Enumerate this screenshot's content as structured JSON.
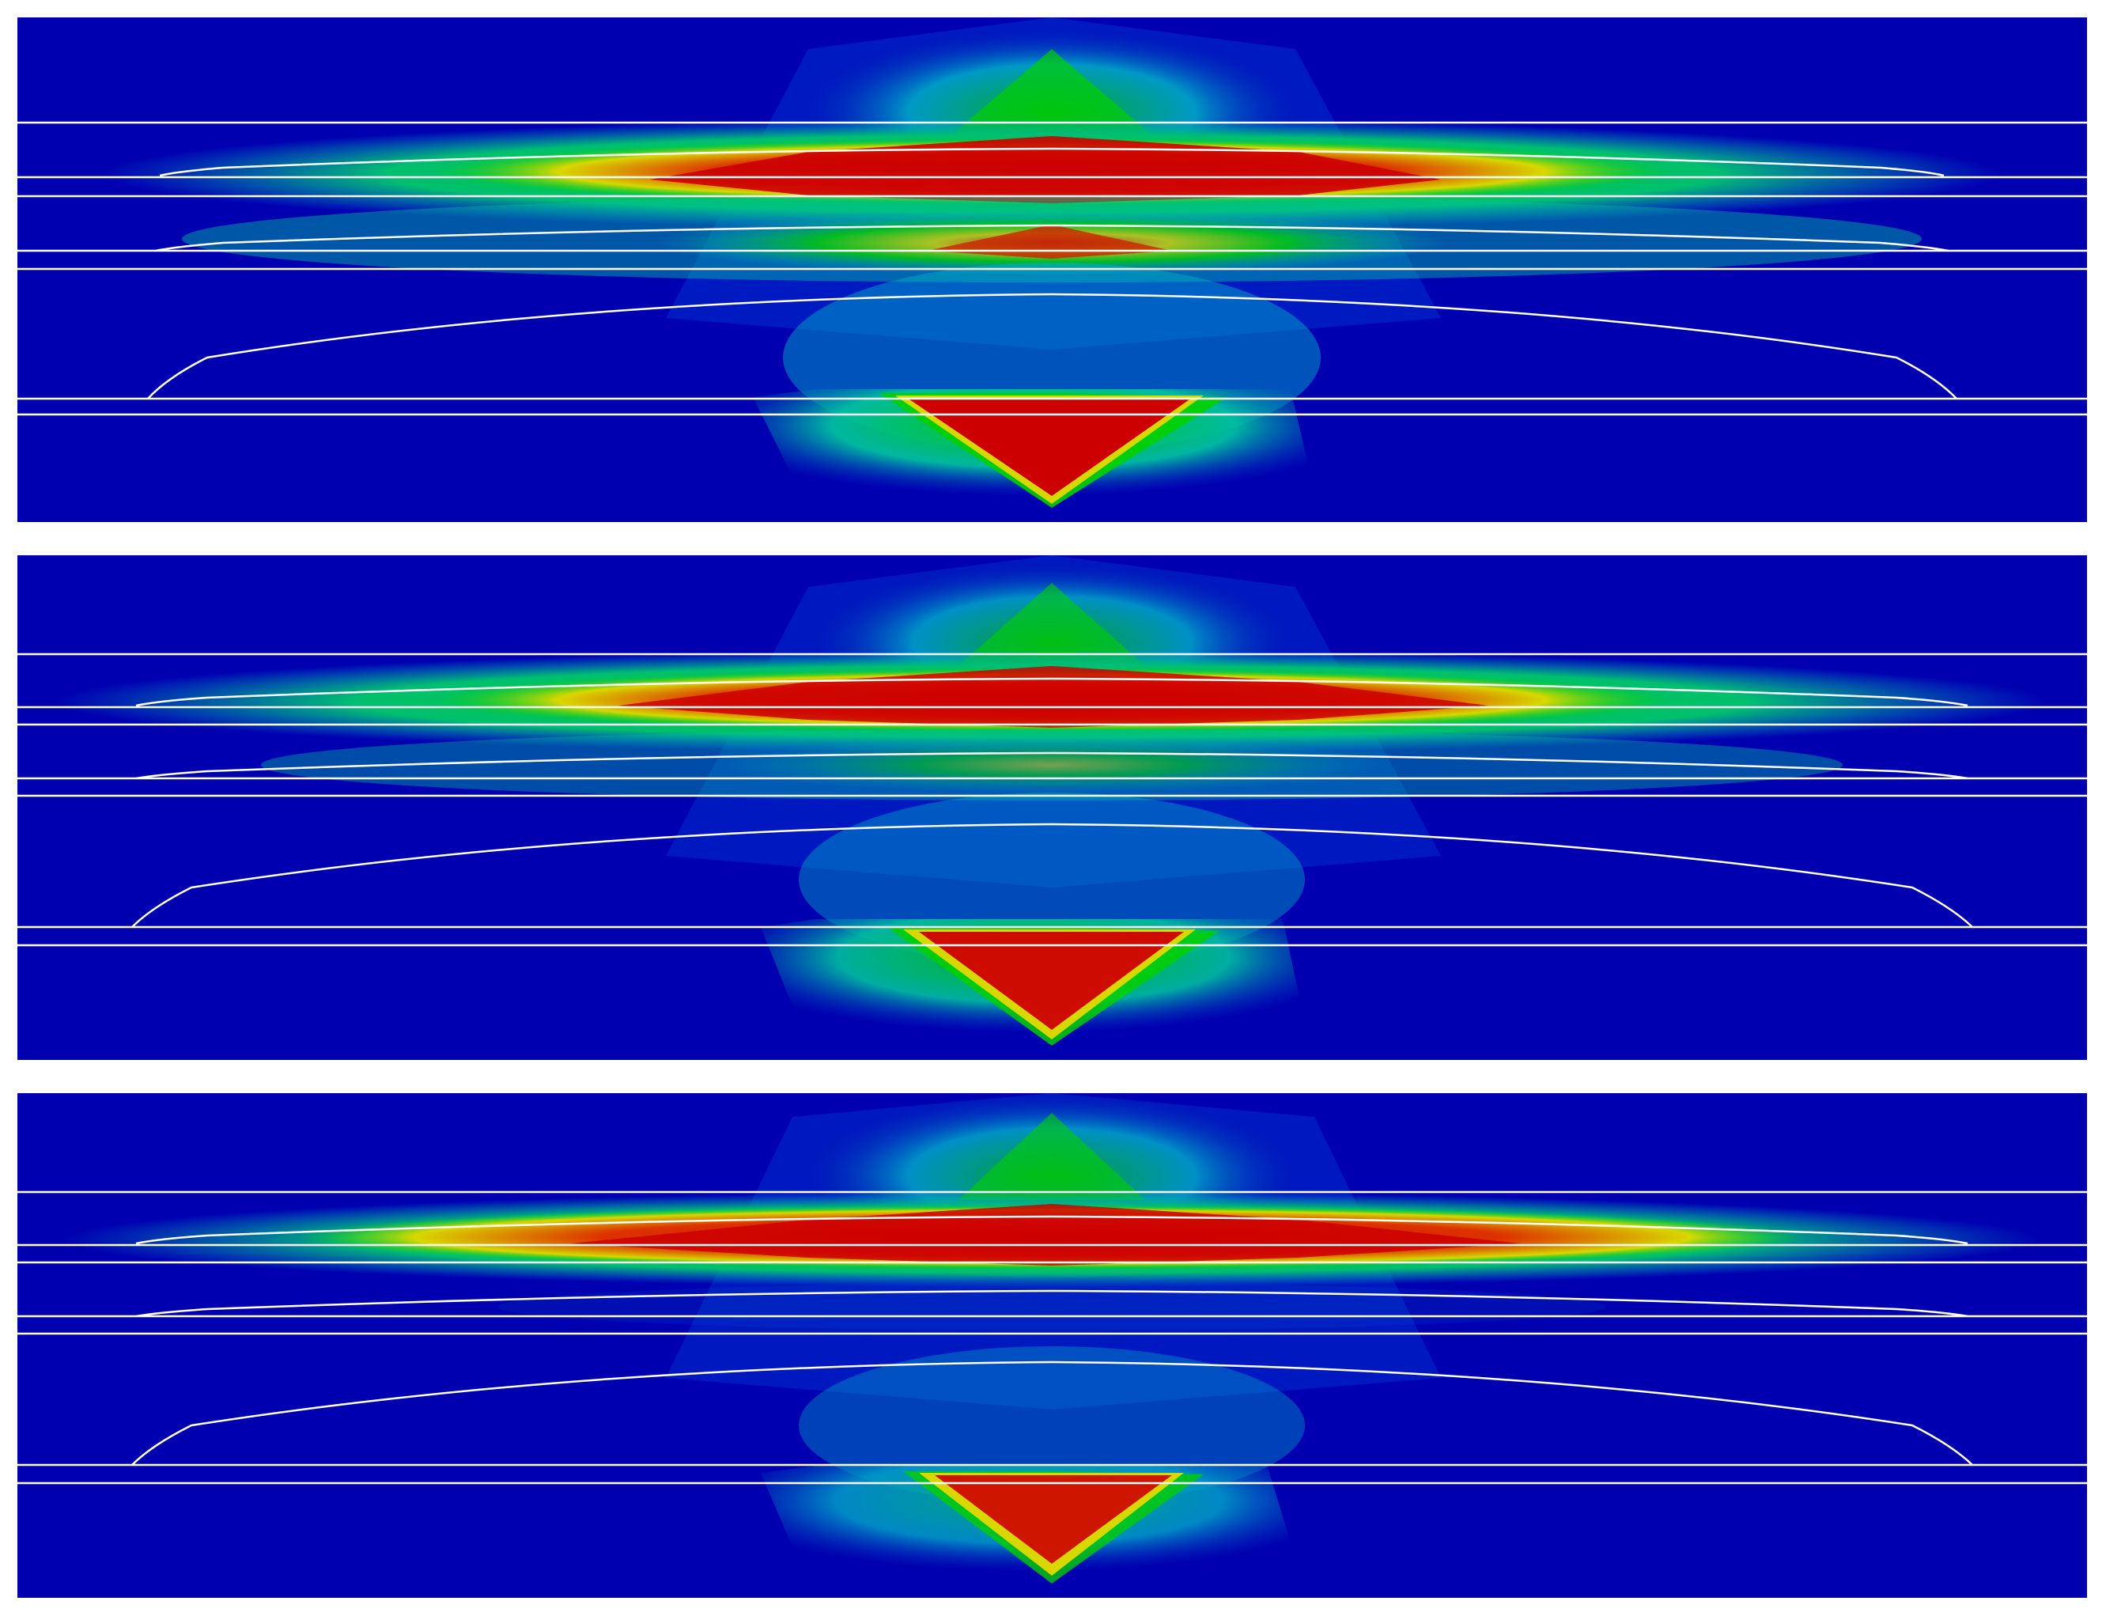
{
  "figure": {
    "panel_count": 3,
    "colors": {
      "background": "#0000b0",
      "low": "#0020c0",
      "cyan": "#00b8c8",
      "green": "#00d000",
      "yellow": "#d8d800",
      "red": "#cc0000",
      "contour_line": "#ffffff"
    },
    "panels": [
      {
        "id": "panel-1",
        "upper_band_intensity": 1.0,
        "middle_band_intensity": 0.8,
        "bottom_triangle_intensity": 1.0
      },
      {
        "id": "panel-2",
        "upper_band_intensity": 1.0,
        "middle_band_intensity": 0.55,
        "bottom_triangle_intensity": 0.95
      },
      {
        "id": "panel-3",
        "upper_band_intensity": 1.0,
        "middle_band_intensity": 0.15,
        "bottom_triangle_intensity": 0.9
      }
    ]
  }
}
